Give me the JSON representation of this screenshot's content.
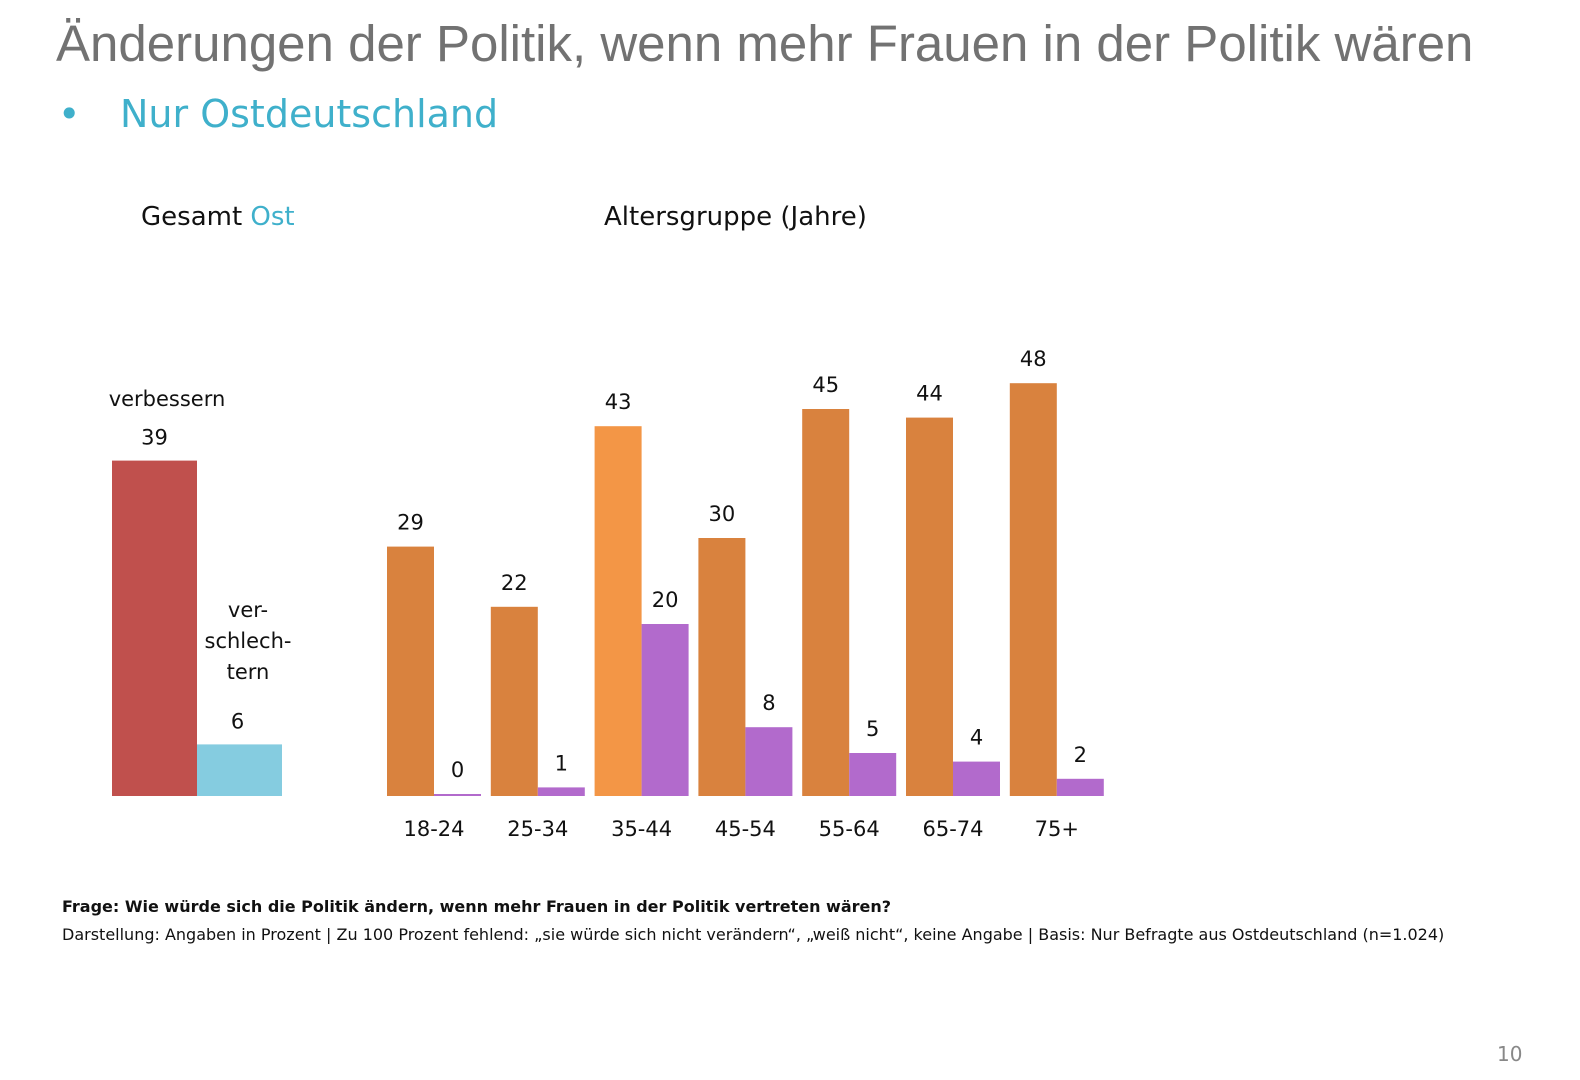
{
  "slide": {
    "title": "Änderungen der Politik, wenn mehr Frauen in der Politik wären",
    "bullet": "Nur Ostdeutschland",
    "bullet_marker": "•",
    "section_total_label": "Gesamt",
    "section_total_accent": "Ost",
    "section_age_label": "Altersgruppe (Jahre)",
    "footnote_question": "Frage: Wie würde sich die Politik ändern, wenn mehr Frauen in der Politik vertreten wären?",
    "footnote_details": "Darstellung: Angaben in Prozent | Zu 100 Prozent fehlend: „sie würde sich nicht verändern“, „weiß nicht“, keine Angabe | Basis: Nur Befragte aus Ostdeutschland (n=1.024)",
    "page_number": "10"
  },
  "colors": {
    "title": "#727272",
    "accent": "#3fb0cb",
    "total_improve": "#c0504d",
    "total_worsen": "#85cce0",
    "age_improve": "#d9823e",
    "age_improve_highlight": "#f39646",
    "age_worsen": "#b26acc"
  },
  "chart_data": [
    {
      "type": "bar",
      "title": "Gesamt Ost",
      "categories": [
        "verbessern",
        "verschlechtern"
      ],
      "category_labels": [
        "verbessern",
        "ver-\nschlech-\ntern"
      ],
      "values": [
        39,
        6
      ],
      "unit": "%",
      "ylim": [
        0,
        50
      ],
      "grid": false,
      "legend": "none"
    },
    {
      "type": "bar",
      "title": "Altersgruppe (Jahre)",
      "categories": [
        "18-24",
        "25-34",
        "35-44",
        "45-54",
        "55-64",
        "65-74",
        "75+"
      ],
      "series": [
        {
          "name": "verbessern",
          "values": [
            29,
            22,
            43,
            30,
            45,
            44,
            48
          ]
        },
        {
          "name": "verschlechtern",
          "values": [
            0,
            1,
            20,
            8,
            5,
            4,
            2
          ]
        }
      ],
      "highlighted_category": "35-44",
      "unit": "%",
      "ylim": [
        0,
        50
      ],
      "grid": false,
      "legend": "none"
    }
  ]
}
